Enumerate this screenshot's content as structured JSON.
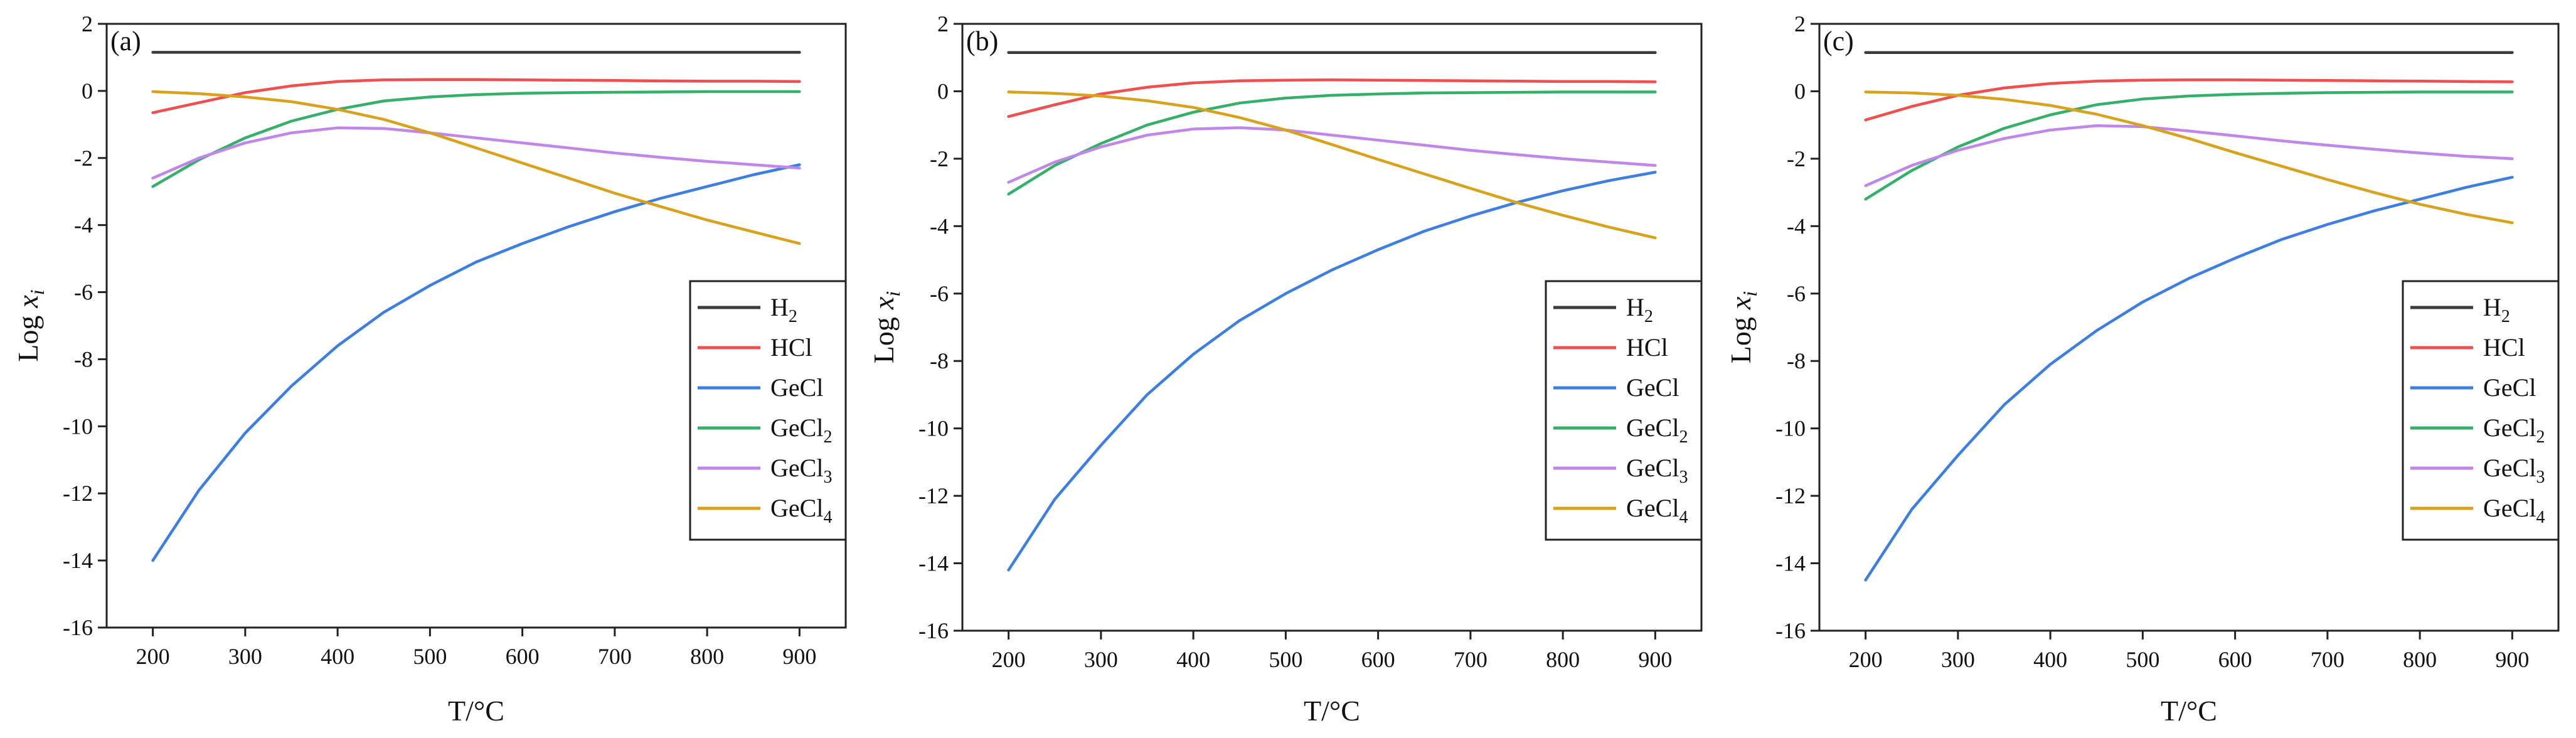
{
  "colors": {
    "H2": "#3a3a3a",
    "HCl": "#ef4f4f",
    "GeCl": "#3c7fe0",
    "GeCl2": "#35b06a",
    "GeCl3": "#c086ea",
    "GeCl4": "#d9a21c"
  },
  "chart_data": [
    {
      "type": "line",
      "panel_label": "(a)",
      "xlabel": "T/°C",
      "ylabel": "Log",
      "ylabel_var": "x",
      "ylabel_sub": "i",
      "xlim": [
        150,
        950
      ],
      "ylim": [
        -16,
        2
      ],
      "xticks": [
        "200",
        "300",
        "400",
        "500",
        "600",
        "700",
        "800",
        "900"
      ],
      "yticks": [
        "2",
        "0",
        "-2",
        "-4",
        "-6",
        "-8",
        "-10",
        "-12",
        "-14",
        "-16"
      ],
      "x": [
        200,
        250,
        300,
        350,
        400,
        450,
        500,
        550,
        600,
        650,
        700,
        750,
        800,
        850,
        900
      ],
      "series": [
        {
          "key": "H2",
          "name": "H",
          "sub": "2",
          "values": [
            1.15,
            1.15,
            1.15,
            1.15,
            1.15,
            1.15,
            1.15,
            1.15,
            1.15,
            1.15,
            1.15,
            1.15,
            1.15,
            1.15,
            1.15
          ]
        },
        {
          "key": "HCl",
          "name": "HCl",
          "sub": "",
          "values": [
            -0.65,
            -0.35,
            -0.05,
            0.15,
            0.28,
            0.33,
            0.34,
            0.34,
            0.33,
            0.32,
            0.31,
            0.3,
            0.29,
            0.29,
            0.28
          ]
        },
        {
          "key": "GeCl",
          "name": "GeCl",
          "sub": "",
          "values": [
            -14.0,
            -11.9,
            -10.2,
            -8.8,
            -7.6,
            -6.6,
            -5.8,
            -5.1,
            -4.55,
            -4.05,
            -3.6,
            -3.2,
            -2.85,
            -2.5,
            -2.2
          ]
        },
        {
          "key": "GeCl2",
          "name": "GeCl",
          "sub": "2",
          "values": [
            -2.85,
            -2.05,
            -1.4,
            -0.9,
            -0.55,
            -0.3,
            -0.18,
            -0.11,
            -0.07,
            -0.05,
            -0.04,
            -0.03,
            -0.02,
            -0.02,
            -0.02
          ]
        },
        {
          "key": "GeCl3",
          "name": "GeCl",
          "sub": "3",
          "values": [
            -2.6,
            -2.0,
            -1.55,
            -1.25,
            -1.1,
            -1.12,
            -1.25,
            -1.4,
            -1.55,
            -1.7,
            -1.85,
            -1.98,
            -2.1,
            -2.2,
            -2.3
          ]
        },
        {
          "key": "GeCl4",
          "name": "GeCl",
          "sub": "4",
          "values": [
            -0.02,
            -0.08,
            -0.18,
            -0.32,
            -0.55,
            -0.85,
            -1.25,
            -1.7,
            -2.15,
            -2.6,
            -3.05,
            -3.45,
            -3.85,
            -4.2,
            -4.55
          ]
        }
      ]
    },
    {
      "type": "line",
      "panel_label": "(b)",
      "xlabel": "T/°C",
      "ylabel": "Log",
      "ylabel_var": "x",
      "ylabel_sub": "i",
      "xlim": [
        150,
        950
      ],
      "ylim": [
        -16,
        2
      ],
      "xticks": [
        "200",
        "300",
        "400",
        "500",
        "600",
        "700",
        "800",
        "900"
      ],
      "yticks": [
        "2",
        "0",
        "-2",
        "-4",
        "-6",
        "-8",
        "-10",
        "-12",
        "-14",
        "-16"
      ],
      "x": [
        200,
        250,
        300,
        350,
        400,
        450,
        500,
        550,
        600,
        650,
        700,
        750,
        800,
        850,
        900
      ],
      "series": [
        {
          "key": "H2",
          "name": "H",
          "sub": "2",
          "values": [
            1.15,
            1.15,
            1.15,
            1.15,
            1.15,
            1.15,
            1.15,
            1.15,
            1.15,
            1.15,
            1.15,
            1.15,
            1.15,
            1.15,
            1.15
          ]
        },
        {
          "key": "HCl",
          "name": "HCl",
          "sub": "",
          "values": [
            -0.75,
            -0.4,
            -0.08,
            0.12,
            0.25,
            0.31,
            0.33,
            0.34,
            0.33,
            0.32,
            0.31,
            0.3,
            0.29,
            0.29,
            0.28
          ]
        },
        {
          "key": "GeCl",
          "name": "GeCl",
          "sub": "",
          "values": [
            -14.2,
            -12.1,
            -10.5,
            -9.0,
            -7.8,
            -6.8,
            -6.0,
            -5.3,
            -4.7,
            -4.15,
            -3.7,
            -3.3,
            -2.95,
            -2.65,
            -2.4
          ]
        },
        {
          "key": "GeCl2",
          "name": "GeCl",
          "sub": "2",
          "values": [
            -3.05,
            -2.2,
            -1.55,
            -1.0,
            -0.62,
            -0.35,
            -0.2,
            -0.12,
            -0.08,
            -0.05,
            -0.04,
            -0.03,
            -0.02,
            -0.02,
            -0.02
          ]
        },
        {
          "key": "GeCl3",
          "name": "GeCl",
          "sub": "3",
          "values": [
            -2.7,
            -2.1,
            -1.65,
            -1.3,
            -1.12,
            -1.08,
            -1.15,
            -1.3,
            -1.45,
            -1.6,
            -1.75,
            -1.88,
            -2.0,
            -2.1,
            -2.2
          ]
        },
        {
          "key": "GeCl4",
          "name": "GeCl",
          "sub": "4",
          "values": [
            -0.02,
            -0.06,
            -0.14,
            -0.28,
            -0.48,
            -0.78,
            -1.15,
            -1.58,
            -2.02,
            -2.45,
            -2.88,
            -3.3,
            -3.68,
            -4.03,
            -4.35
          ]
        }
      ]
    },
    {
      "type": "line",
      "panel_label": "(c)",
      "xlabel": "T/°C",
      "ylabel": "Log",
      "ylabel_var": "x",
      "ylabel_sub": "i",
      "xlim": [
        150,
        950
      ],
      "ylim": [
        -16,
        2
      ],
      "xticks": [
        "200",
        "300",
        "400",
        "500",
        "600",
        "700",
        "800",
        "900"
      ],
      "yticks": [
        "2",
        "0",
        "-2",
        "-4",
        "-6",
        "-8",
        "-10",
        "-12",
        "-14",
        "-16"
      ],
      "x": [
        200,
        250,
        300,
        350,
        400,
        450,
        500,
        550,
        600,
        650,
        700,
        750,
        800,
        850,
        900
      ],
      "series": [
        {
          "key": "H2",
          "name": "H",
          "sub": "2",
          "values": [
            1.15,
            1.15,
            1.15,
            1.15,
            1.15,
            1.15,
            1.15,
            1.15,
            1.15,
            1.15,
            1.15,
            1.15,
            1.15,
            1.15,
            1.15
          ]
        },
        {
          "key": "HCl",
          "name": "HCl",
          "sub": "",
          "values": [
            -0.85,
            -0.45,
            -0.12,
            0.1,
            0.23,
            0.3,
            0.33,
            0.34,
            0.34,
            0.33,
            0.32,
            0.31,
            0.3,
            0.29,
            0.28
          ]
        },
        {
          "key": "GeCl",
          "name": "GeCl",
          "sub": "",
          "values": [
            -14.5,
            -12.4,
            -10.8,
            -9.3,
            -8.1,
            -7.1,
            -6.25,
            -5.55,
            -4.95,
            -4.4,
            -3.95,
            -3.55,
            -3.2,
            -2.85,
            -2.55
          ]
        },
        {
          "key": "GeCl2",
          "name": "GeCl",
          "sub": "2",
          "values": [
            -3.2,
            -2.35,
            -1.65,
            -1.1,
            -0.7,
            -0.4,
            -0.23,
            -0.14,
            -0.09,
            -0.06,
            -0.04,
            -0.03,
            -0.02,
            -0.02,
            -0.02
          ]
        },
        {
          "key": "GeCl3",
          "name": "GeCl",
          "sub": "3",
          "values": [
            -2.8,
            -2.2,
            -1.75,
            -1.4,
            -1.15,
            -1.02,
            -1.05,
            -1.18,
            -1.32,
            -1.47,
            -1.6,
            -1.72,
            -1.83,
            -1.93,
            -2.0
          ]
        },
        {
          "key": "GeCl4",
          "name": "GeCl",
          "sub": "4",
          "values": [
            -0.02,
            -0.05,
            -0.12,
            -0.24,
            -0.42,
            -0.68,
            -1.02,
            -1.4,
            -1.82,
            -2.22,
            -2.62,
            -3.0,
            -3.35,
            -3.65,
            -3.9
          ]
        }
      ]
    }
  ]
}
